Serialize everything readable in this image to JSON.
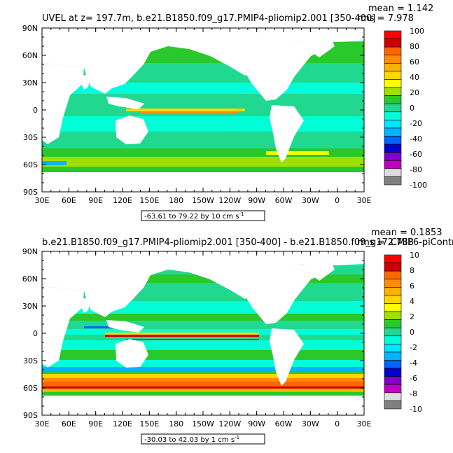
{
  "colors": [
    "#ff0000",
    "#cc0000",
    "#ff6600",
    "#ff8c00",
    "#ffb000",
    "#ffd700",
    "#ffff00",
    "#a0e000",
    "#2ac82a",
    "#20d890",
    "#00ffd7",
    "#00e5ff",
    "#00b4ff",
    "#0064ff",
    "#0000d0",
    "#8000c8",
    "#c000c0",
    "#dcdcdc",
    "#808080"
  ],
  "land_color": "#ffffff",
  "panels": [
    {
      "title": "UVEL at z= 197.7m, b.e21.B1850.f09_g17.PMIP4-pliomip2.001 [350-400]",
      "mean_label": "mean = 1.142",
      "rms_label": "rms = 7.978",
      "range_label": "-63.61 to 79.22 by 10 cm s",
      "range_unit_sup": "-1",
      "colorbar_labels": [
        "100",
        "80",
        "60",
        "40",
        "20",
        "0",
        "-20",
        "-40",
        "-60",
        "-80",
        "-100"
      ],
      "ylabels": [
        "90N",
        "60N",
        "30N",
        "0",
        "30S",
        "60S",
        "90S"
      ],
      "xlabels": [
        "30E",
        "60E",
        "90E",
        "120E",
        "150E",
        "180",
        "150W",
        "120W",
        "90W",
        "60W",
        "30W",
        "0",
        "30E"
      ]
    },
    {
      "title": "b.e21.B1850.f09_g17.PMIP4-pliomip2.001 [350-400] - b.e21.B1850.f09_g17.CMIP6-piControl.001",
      "mean_label": "mean = 0.1853",
      "rms_label": "rms = 2.788",
      "range_label": "-30.03 to 42.03 by 1 cm s",
      "range_unit_sup": "-1",
      "colorbar_labels": [
        "10",
        "8",
        "6",
        "4",
        "2",
        "0",
        "-2",
        "-4",
        "-6",
        "-8",
        "-10"
      ],
      "ylabels": [
        "90N",
        "60N",
        "30N",
        "0",
        "30S",
        "60S",
        "90S"
      ],
      "xlabels": [
        "30E",
        "60E",
        "90E",
        "120E",
        "150E",
        "180",
        "150W",
        "120W",
        "90W",
        "60W",
        "30W",
        "0",
        "30E"
      ]
    }
  ],
  "chart_data": [
    {
      "type": "heatmap",
      "title": "UVEL at z= 197.7m, b.e21.B1850.f09_g17.PMIP4-pliomip2.001 [350-400]",
      "x": [
        "30E",
        "60E",
        "90E",
        "120E",
        "150E",
        "180",
        "150W",
        "120W",
        "90W",
        "60W",
        "30W",
        "0",
        "30E"
      ],
      "y": [
        "90N",
        "60N",
        "30N",
        "0",
        "30S",
        "60S",
        "90S"
      ],
      "colorbar_levels": [
        100,
        80,
        60,
        40,
        20,
        0,
        -20,
        -40,
        -60,
        -80,
        -100
      ],
      "mean": 1.142,
      "rms": 7.978,
      "min": -63.61,
      "max": 79.22,
      "contour_interval": 10,
      "units": "cm s-1"
    },
    {
      "type": "heatmap",
      "title": "b.e21.B1850.f09_g17.PMIP4-pliomip2.001 [350-400] - b.e21.B1850.f09_g17.CMIP6-piControl.001",
      "x": [
        "30E",
        "60E",
        "90E",
        "120E",
        "150E",
        "180",
        "150W",
        "120W",
        "90W",
        "60W",
        "30W",
        "0",
        "30E"
      ],
      "y": [
        "90N",
        "60N",
        "30N",
        "0",
        "30S",
        "60S",
        "90S"
      ],
      "colorbar_levels": [
        10,
        8,
        6,
        4,
        2,
        0,
        -2,
        -4,
        -6,
        -8,
        -10
      ],
      "mean": 0.1853,
      "rms": 2.788,
      "min": -30.03,
      "max": 42.03,
      "contour_interval": 1,
      "units": "cm s-1"
    }
  ]
}
